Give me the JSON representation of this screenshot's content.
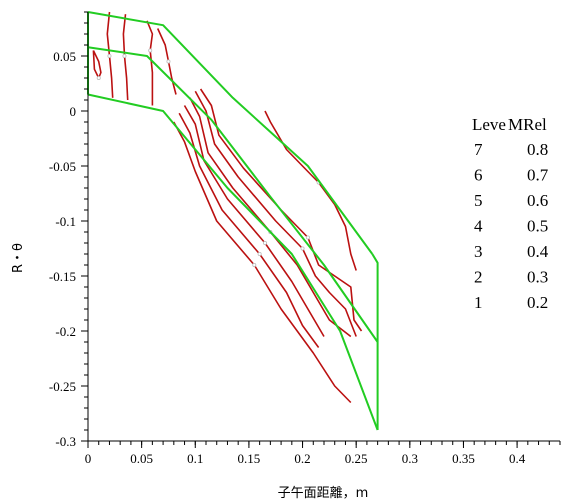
{
  "chart_data": {
    "type": "contour",
    "xlabel": "子午面距離，m",
    "ylabel": "R・θ",
    "xlim": [
      0,
      0.44
    ],
    "ylim": [
      -0.3,
      0.09
    ],
    "x_ticks": [
      0,
      0.05,
      0.1,
      0.15,
      0.2,
      0.25,
      0.3,
      0.35,
      0.4
    ],
    "x_tick_labels": [
      "0",
      "0.05",
      "0.1",
      "0.15",
      "0.2",
      "0.25",
      "0.3",
      "0.35",
      "0.4"
    ],
    "y_ticks": [
      0.05,
      0,
      -0.05,
      -0.1,
      -0.15,
      -0.2,
      -0.25,
      -0.3
    ],
    "y_tick_labels": [
      "0.05",
      "0",
      "-0.05",
      "-0.1",
      "-0.15",
      "-0.2",
      "-0.25",
      "-0.3"
    ],
    "grid": false,
    "legend_position": "right",
    "legend": {
      "header_level": "Leve",
      "header_value": "MRel",
      "rows": [
        {
          "level": "7",
          "value": "0.8"
        },
        {
          "level": "6",
          "value": "0.7"
        },
        {
          "level": "5",
          "value": "0.6"
        },
        {
          "level": "4",
          "value": "0.5"
        },
        {
          "level": "3",
          "value": "0.4"
        },
        {
          "level": "2",
          "value": "0.3"
        },
        {
          "level": "1",
          "value": "0.2"
        }
      ]
    },
    "colors": {
      "boundary": "#22cc22",
      "contour": "#bb1111",
      "label_marker": "#bbbbbb"
    },
    "boundary_lines": [
      [
        [
          0,
          0.09
        ],
        [
          0.07,
          0.078
        ],
        [
          0.135,
          0.012
        ],
        [
          0.205,
          -0.05
        ],
        [
          0.265,
          -0.13
        ]
      ],
      [
        [
          0,
          0.058
        ],
        [
          0.055,
          0.05
        ],
        [
          0.115,
          -0.008
        ],
        [
          0.17,
          -0.078
        ],
        [
          0.22,
          -0.14
        ],
        [
          0.27,
          -0.21
        ]
      ],
      [
        [
          0,
          0.015
        ],
        [
          0.07,
          0.0
        ],
        [
          0.13,
          -0.07
        ],
        [
          0.19,
          -0.13
        ],
        [
          0.235,
          -0.2
        ],
        [
          0.27,
          -0.29
        ]
      ],
      [
        [
          0,
          0.09
        ],
        [
          0,
          0.015
        ]
      ],
      [
        [
          0.265,
          -0.13
        ],
        [
          0.27,
          -0.138
        ],
        [
          0.27,
          -0.29
        ]
      ]
    ],
    "contours": [
      {
        "level": 7,
        "points": [
          [
            0.105,
            0.02
          ],
          [
            0.115,
            0.005
          ],
          [
            0.122,
            -0.022
          ],
          [
            0.145,
            -0.052
          ],
          [
            0.18,
            -0.09
          ],
          [
            0.205,
            -0.115
          ],
          [
            0.215,
            -0.14
          ],
          [
            0.23,
            -0.15
          ],
          [
            0.245,
            -0.16
          ],
          [
            0.248,
            -0.19
          ],
          [
            0.255,
            -0.2
          ]
        ]
      },
      {
        "level": 6,
        "points": [
          [
            0.1,
            0.018
          ],
          [
            0.11,
            0.0
          ],
          [
            0.118,
            -0.03
          ],
          [
            0.14,
            -0.06
          ],
          [
            0.175,
            -0.1
          ],
          [
            0.2,
            -0.125
          ],
          [
            0.212,
            -0.15
          ],
          [
            0.225,
            -0.165
          ],
          [
            0.24,
            -0.18
          ],
          [
            0.25,
            -0.205
          ]
        ]
      },
      {
        "level": 5,
        "points": [
          [
            0.095,
            0.012
          ],
          [
            0.104,
            -0.005
          ],
          [
            0.112,
            -0.038
          ],
          [
            0.135,
            -0.07
          ],
          [
            0.17,
            -0.11
          ],
          [
            0.195,
            -0.14
          ],
          [
            0.21,
            -0.165
          ],
          [
            0.225,
            -0.19
          ],
          [
            0.245,
            -0.205
          ]
        ]
      },
      {
        "level": 4,
        "points": [
          [
            0.09,
            0.005
          ],
          [
            0.1,
            -0.012
          ],
          [
            0.108,
            -0.045
          ],
          [
            0.13,
            -0.08
          ],
          [
            0.165,
            -0.12
          ],
          [
            0.19,
            -0.155
          ],
          [
            0.205,
            -0.18
          ],
          [
            0.22,
            -0.205
          ]
        ]
      },
      {
        "level": 3,
        "points": [
          [
            0.085,
            -0.002
          ],
          [
            0.095,
            -0.02
          ],
          [
            0.104,
            -0.05
          ],
          [
            0.125,
            -0.09
          ],
          [
            0.16,
            -0.13
          ],
          [
            0.185,
            -0.165
          ],
          [
            0.2,
            -0.195
          ],
          [
            0.215,
            -0.215
          ]
        ]
      },
      {
        "level": 2,
        "points": [
          [
            0.08,
            -0.01
          ],
          [
            0.09,
            -0.028
          ],
          [
            0.1,
            -0.055
          ],
          [
            0.12,
            -0.1
          ],
          [
            0.155,
            -0.14
          ],
          [
            0.18,
            -0.18
          ],
          [
            0.21,
            -0.22
          ],
          [
            0.23,
            -0.25
          ],
          [
            0.245,
            -0.265
          ]
        ]
      },
      {
        "level": 1,
        "points": [
          [
            0.165,
            0.0
          ],
          [
            0.17,
            -0.01
          ],
          [
            0.185,
            -0.035
          ],
          [
            0.2,
            -0.05
          ],
          [
            0.215,
            -0.065
          ],
          [
            0.23,
            -0.085
          ],
          [
            0.24,
            -0.105
          ],
          [
            0.245,
            -0.13
          ],
          [
            0.25,
            -0.145
          ]
        ]
      },
      {
        "level": 6,
        "points": [
          [
            0.02,
            0.09
          ],
          [
            0.018,
            0.07
          ],
          [
            0.02,
            0.05
          ],
          [
            0.022,
            0.03
          ],
          [
            0.023,
            0.012
          ]
        ]
      },
      {
        "level": 5,
        "points": [
          [
            0.035,
            0.088
          ],
          [
            0.033,
            0.07
          ],
          [
            0.034,
            0.05
          ],
          [
            0.036,
            0.03
          ],
          [
            0.037,
            0.01
          ]
        ]
      },
      {
        "level": 4,
        "points": [
          [
            0.055,
            0.082
          ],
          [
            0.06,
            0.07
          ],
          [
            0.058,
            0.055
          ],
          [
            0.06,
            0.035
          ],
          [
            0.06,
            0.005
          ]
        ]
      },
      {
        "level": 3,
        "points": [
          [
            0.065,
            0.075
          ],
          [
            0.072,
            0.06
          ],
          [
            0.075,
            0.045
          ],
          [
            0.078,
            0.03
          ],
          [
            0.082,
            0.015
          ]
        ]
      },
      {
        "level": 7,
        "points": [
          [
            0.005,
            0.055
          ],
          [
            0.01,
            0.045
          ],
          [
            0.012,
            0.035
          ],
          [
            0.01,
            0.03
          ],
          [
            0.006,
            0.038
          ],
          [
            0.005,
            0.055
          ]
        ]
      }
    ]
  }
}
